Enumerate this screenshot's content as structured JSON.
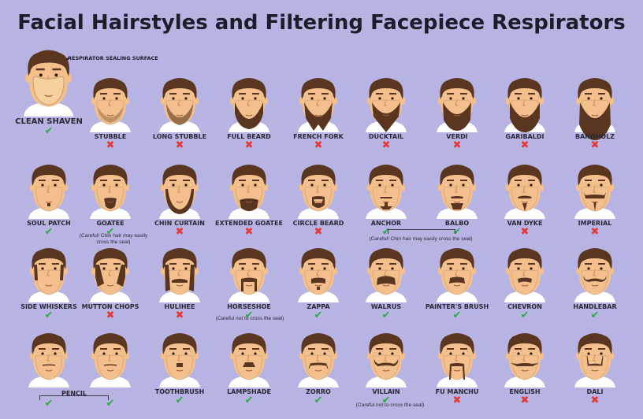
{
  "title": "Facial Hairstyles and Filtering Facepiece Respirators",
  "sealing_surface_label": "RESPIRATOR SEALING SURFACE",
  "colors": {
    "background": "#b7b4e4",
    "check": "#2ea84a",
    "cross": "#e23a3a",
    "hair": "#5a3620",
    "skin": "#f3c08d",
    "shirt": "#ffffff"
  },
  "icons": {
    "check": "✔",
    "cross": "✖"
  },
  "faces": [
    {
      "label": "CLEAN SHAVEN",
      "ok": true,
      "style": "clean"
    },
    {
      "label": "STUBBLE",
      "ok": false,
      "style": "stubble"
    },
    {
      "label": "LONG STUBBLE",
      "ok": false,
      "style": "longstubble"
    },
    {
      "label": "FULL BEARD",
      "ok": false,
      "style": "fullbeard"
    },
    {
      "label": "FRENCH FORK",
      "ok": false,
      "style": "frenchfork"
    },
    {
      "label": "DUCKTAIL",
      "ok": false,
      "style": "ducktail"
    },
    {
      "label": "VERDI",
      "ok": false,
      "style": "verdi"
    },
    {
      "label": "GARIBALDI",
      "ok": false,
      "style": "garibaldi"
    },
    {
      "label": "BANDHOLZ",
      "ok": false,
      "style": "bandholz"
    },
    {
      "label": "SOUL PATCH",
      "ok": true,
      "style": "soulpatch"
    },
    {
      "label": "GOATEE",
      "ok": true,
      "style": "goatee"
    },
    {
      "label": "CHIN CURTAIN",
      "ok": false,
      "style": "chincurtain"
    },
    {
      "label": "EXTENDED GOATEE",
      "ok": false,
      "style": "extgoatee"
    },
    {
      "label": "CIRCLE BEARD",
      "ok": false,
      "style": "circlebeard"
    },
    {
      "label": "ANCHOR",
      "ok": true,
      "style": "anchor"
    },
    {
      "label": "BALBO",
      "ok": true,
      "style": "balbo"
    },
    {
      "label": "VAN DYKE",
      "ok": false,
      "style": "vandyke"
    },
    {
      "label": "IMPERIAL",
      "ok": false,
      "style": "imperial"
    },
    {
      "label": "SIDE WHISKERS",
      "ok": true,
      "style": "sidewhiskers"
    },
    {
      "label": "MUTTON CHOPS",
      "ok": false,
      "style": "muttonchops"
    },
    {
      "label": "HULIHEE",
      "ok": false,
      "style": "hulihee"
    },
    {
      "label": "HORSESHOE",
      "ok": true,
      "style": "horseshoe"
    },
    {
      "label": "ZAPPA",
      "ok": true,
      "style": "zappa"
    },
    {
      "label": "WALRUS",
      "ok": true,
      "style": "walrus"
    },
    {
      "label": "PAINTER'S BRUSH",
      "ok": true,
      "style": "painters"
    },
    {
      "label": "CHEVRON",
      "ok": true,
      "style": "chevron"
    },
    {
      "label": "HANDLEBAR",
      "ok": true,
      "style": "handlebar"
    },
    {
      "label": "",
      "ok": true,
      "style": "pencil1"
    },
    {
      "label": "",
      "ok": true,
      "style": "pencil2"
    },
    {
      "label": "TOOTHBRUSH",
      "ok": true,
      "style": "toothbrush"
    },
    {
      "label": "LAMPSHADE",
      "ok": true,
      "style": "lampshade"
    },
    {
      "label": "ZORRO",
      "ok": true,
      "style": "zorro"
    },
    {
      "label": "VILLAIN",
      "ok": true,
      "style": "villain"
    },
    {
      "label": "FU MANCHU",
      "ok": false,
      "style": "fumanchu"
    },
    {
      "label": "ENGLISH",
      "ok": false,
      "style": "english"
    },
    {
      "label": "DALI",
      "ok": false,
      "style": "dali"
    }
  ],
  "notes": {
    "goatee": "(Careful! Chin hair may easily cross the seal)",
    "anchor_balbo": "(Careful! Chin hair may easily cross the seal)",
    "horseshoe": "(Careful not to cross the seal)",
    "villain": "(Careful not to cross the seal)"
  },
  "pencil_label": "PENCIL"
}
